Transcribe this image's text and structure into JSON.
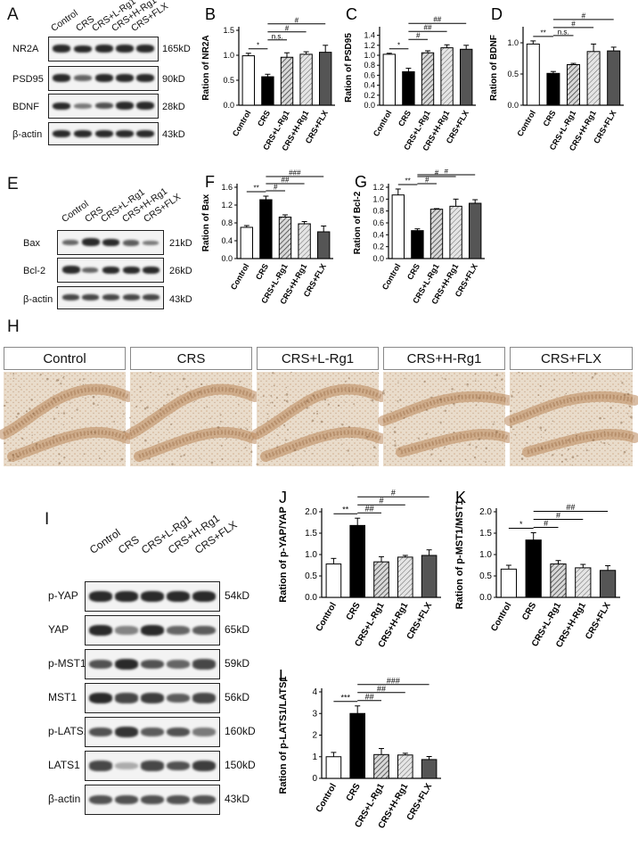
{
  "panels": {
    "A": {
      "letter": "A",
      "lanes": [
        "Control",
        "CRS",
        "CRS+L-Rg1",
        "CRS+H-Rg1",
        "CRS+FLX"
      ],
      "rows": [
        {
          "protein": "NR2A",
          "kd": "165kD"
        },
        {
          "protein": "PSD95",
          "kd": "90kD"
        },
        {
          "protein": "BDNF",
          "kd": "28kD"
        },
        {
          "protein": "β-actin",
          "kd": "43kD"
        }
      ]
    },
    "E": {
      "letter": "E",
      "lanes": [
        "Control",
        "CRS",
        "CRS+L-Rg1",
        "CRS+H-Rg1",
        "CRS+FLX"
      ],
      "rows": [
        {
          "protein": "Bax",
          "kd": "21kD"
        },
        {
          "protein": "Bcl-2",
          "kd": "26kD"
        },
        {
          "protein": "β-actin",
          "kd": "43kD"
        }
      ]
    },
    "I": {
      "letter": "I",
      "lanes": [
        "Control",
        "CRS",
        "CRS+L-Rg1",
        "CRS+H-Rg1",
        "CRS+FLX"
      ],
      "rows": [
        {
          "protein": "p-YAP",
          "kd": "54kD"
        },
        {
          "protein": "YAP",
          "kd": "65kD"
        },
        {
          "protein": "p-MST1",
          "kd": "59kD"
        },
        {
          "protein": "MST1",
          "kd": "56kD"
        },
        {
          "protein": "p-LATS1",
          "kd": "160kD"
        },
        {
          "protein": "LATS1",
          "kd": "150kD"
        },
        {
          "protein": "β-actin",
          "kd": "43kD"
        }
      ]
    },
    "H": {
      "letter": "H",
      "headers": [
        "Control",
        "CRS",
        "CRS+L-Rg1",
        "CRS+H-Rg1",
        "CRS+FLX"
      ]
    }
  },
  "chart_data": [
    {
      "id": "B",
      "letter": "B",
      "type": "bar",
      "categories": [
        "Control",
        "CRS",
        "CRS+L-Rg1",
        "CRS+H-Rg1",
        "CRS+FLX"
      ],
      "values": [
        0.99,
        0.57,
        0.96,
        1.02,
        1.06
      ],
      "errors": [
        0.05,
        0.05,
        0.09,
        0.05,
        0.14
      ],
      "ylabel": "Ration of NR2A",
      "ylim": [
        0,
        1.5
      ],
      "yticks": [
        "0.0",
        "0.5",
        "1.0",
        "1.5"
      ],
      "ytick_values": [
        0,
        0.5,
        1.0,
        1.5
      ],
      "sig": [
        {
          "from": 0,
          "to": 1,
          "label": "*"
        },
        {
          "from": 1,
          "to": 2,
          "label": "n.s."
        },
        {
          "from": 1,
          "to": 3,
          "label": "#"
        },
        {
          "from": 1,
          "to": 4,
          "label": "#"
        }
      ]
    },
    {
      "id": "C",
      "letter": "C",
      "type": "bar",
      "categories": [
        "Control",
        "CRS",
        "CRS+L-Rg1",
        "CRS+H-Rg1",
        "CRS+FLX"
      ],
      "values": [
        1.02,
        0.67,
        1.05,
        1.15,
        1.12
      ],
      "errors": [
        0.02,
        0.07,
        0.04,
        0.06,
        0.08
      ],
      "ylabel": "Ration of PSD95",
      "ylim": [
        0,
        1.5
      ],
      "yticks": [
        "0.0",
        "0.2",
        "0.4",
        "0.6",
        "0.8",
        "1.0",
        "1.2",
        "1.4"
      ],
      "ytick_values": [
        0,
        0.2,
        0.4,
        0.6,
        0.8,
        1.0,
        1.2,
        1.4
      ],
      "sig": [
        {
          "from": 0,
          "to": 1,
          "label": "*"
        },
        {
          "from": 1,
          "to": 2,
          "label": "#"
        },
        {
          "from": 1,
          "to": 3,
          "label": "##"
        },
        {
          "from": 1,
          "to": 4,
          "label": "##"
        }
      ]
    },
    {
      "id": "D",
      "letter": "D",
      "type": "bar",
      "categories": [
        "Control",
        "CRS",
        "CRS+L-Rg1",
        "CRS+H-Rg1",
        "CRS+FLX"
      ],
      "values": [
        0.98,
        0.51,
        0.65,
        0.86,
        0.87
      ],
      "errors": [
        0.05,
        0.03,
        0.02,
        0.12,
        0.06
      ],
      "ylabel": "Ration of BDNF",
      "ylim": [
        0,
        1.2
      ],
      "yticks": [
        "0.0",
        "0.5",
        "1.0"
      ],
      "ytick_values": [
        0,
        0.5,
        1.0
      ],
      "sig": [
        {
          "from": 0,
          "to": 1,
          "label": "**"
        },
        {
          "from": 1,
          "to": 2,
          "label": "n.s."
        },
        {
          "from": 1,
          "to": 3,
          "label": "#"
        },
        {
          "from": 1,
          "to": 4,
          "label": "#"
        }
      ]
    },
    {
      "id": "F",
      "letter": "F",
      "type": "bar",
      "categories": [
        "Control",
        "CRS",
        "CRS+L-Rg1",
        "CRS+H-Rg1",
        "CRS+FLX"
      ],
      "values": [
        0.7,
        1.32,
        0.93,
        0.78,
        0.6
      ],
      "errors": [
        0.04,
        0.08,
        0.05,
        0.05,
        0.13
      ],
      "ylabel": "Ration of Bax",
      "ylim": [
        0,
        1.6
      ],
      "yticks": [
        "0.0",
        "0.4",
        "0.8",
        "1.2",
        "1.6"
      ],
      "ytick_values": [
        0,
        0.4,
        0.8,
        1.2,
        1.6
      ],
      "sig": [
        {
          "from": 0,
          "to": 1,
          "label": "**"
        },
        {
          "from": 1,
          "to": 2,
          "label": "#"
        },
        {
          "from": 1,
          "to": 3,
          "label": "##"
        },
        {
          "from": 1,
          "to": 4,
          "label": "###"
        }
      ]
    },
    {
      "id": "G",
      "letter": "G",
      "type": "bar",
      "categories": [
        "Control",
        "CRS",
        "CRS+L-Rg1",
        "CRS+H-Rg1",
        "CRS+FLX"
      ],
      "values": [
        1.07,
        0.47,
        0.83,
        0.88,
        0.93
      ],
      "errors": [
        0.1,
        0.03,
        0.01,
        0.12,
        0.06
      ],
      "ylabel": "Ration of Bcl-2",
      "ylim": [
        0,
        1.2
      ],
      "yticks": [
        "0.0",
        "0.2",
        "0.4",
        "0.6",
        "0.8",
        "1.0",
        "1.2"
      ],
      "ytick_values": [
        0,
        0.2,
        0.4,
        0.6,
        0.8,
        1.0,
        1.2
      ],
      "sig": [
        {
          "from": 0,
          "to": 1,
          "label": "**"
        },
        {
          "from": 1,
          "to": 2,
          "label": "#"
        },
        {
          "from": 1,
          "to": 3,
          "label": "#"
        },
        {
          "from": 1,
          "to": 4,
          "label": "#"
        }
      ]
    },
    {
      "id": "J",
      "letter": "J",
      "type": "bar",
      "categories": [
        "Control",
        "CRS",
        "CRS+L-Rg1",
        "CRS+H-Rg1",
        "CRS+FLX"
      ],
      "values": [
        0.78,
        1.68,
        0.83,
        0.94,
        0.98
      ],
      "errors": [
        0.13,
        0.17,
        0.12,
        0.04,
        0.13
      ],
      "ylabel": "Ration of p-YAP/YAP",
      "ylim": [
        0,
        2.0
      ],
      "yticks": [
        "0.0",
        "0.5",
        "1.0",
        "1.5",
        "2.0"
      ],
      "ytick_values": [
        0,
        0.5,
        1.0,
        1.5,
        2.0
      ],
      "sig": [
        {
          "from": 0,
          "to": 1,
          "label": "**"
        },
        {
          "from": 1,
          "to": 2,
          "label": "##"
        },
        {
          "from": 1,
          "to": 3,
          "label": "#"
        },
        {
          "from": 1,
          "to": 4,
          "label": "#"
        }
      ]
    },
    {
      "id": "K",
      "letter": "K",
      "type": "bar",
      "categories": [
        "Control",
        "CRS",
        "CRS+L-Rg1",
        "CRS+H-Rg1",
        "CRS+FLX"
      ],
      "values": [
        0.66,
        1.34,
        0.78,
        0.69,
        0.63
      ],
      "errors": [
        0.09,
        0.17,
        0.08,
        0.08,
        0.11
      ],
      "ylabel": "Ration of p-MST1/MST1",
      "ylim": [
        0,
        2.0
      ],
      "yticks": [
        "0.0",
        "0.5",
        "1.0",
        "1.5",
        "2.0"
      ],
      "ytick_values": [
        0,
        0.5,
        1.0,
        1.5,
        2.0
      ],
      "sig": [
        {
          "from": 0,
          "to": 1,
          "label": "*"
        },
        {
          "from": 1,
          "to": 2,
          "label": "#"
        },
        {
          "from": 1,
          "to": 3,
          "label": "#"
        },
        {
          "from": 1,
          "to": 4,
          "label": "##"
        }
      ]
    },
    {
      "id": "L",
      "letter": "L",
      "type": "bar",
      "categories": [
        "Control",
        "CRS",
        "CRS+L-Rg1",
        "CRS+H-Rg1",
        "CRS+FLX"
      ],
      "values": [
        1.0,
        3.0,
        1.1,
        1.08,
        0.87
      ],
      "errors": [
        0.2,
        0.35,
        0.28,
        0.08,
        0.14
      ],
      "ylabel": "Ration of p-LATS1/LATS1",
      "ylim": [
        0,
        4
      ],
      "yticks": [
        "0",
        "1",
        "2",
        "3",
        "4"
      ],
      "ytick_values": [
        0,
        1,
        2,
        3,
        4
      ],
      "sig": [
        {
          "from": 0,
          "to": 1,
          "label": "***"
        },
        {
          "from": 1,
          "to": 2,
          "label": "##"
        },
        {
          "from": 1,
          "to": 3,
          "label": "##"
        },
        {
          "from": 1,
          "to": 4,
          "label": "###"
        }
      ]
    }
  ],
  "colors": {
    "bar_control": "#ffffff",
    "bar_crs": "#000000",
    "bar_l_rg1": "#7a7a7a",
    "bar_h_rg1": "#b0b0b0",
    "bar_flx": "#555555",
    "tissue_bg": "#e9dccb",
    "tissue_cells": "#b9875a"
  }
}
